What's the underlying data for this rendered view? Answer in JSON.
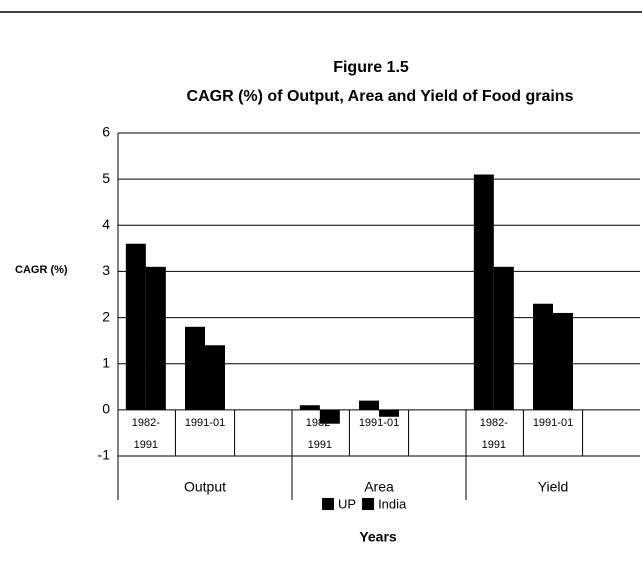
{
  "chart_data": {
    "type": "bar",
    "title": "Figure 1.5",
    "subtitle": "CAGR (%) of Output, Area and Yield of Food grains",
    "y_label": "CAGR (%)",
    "x_label": "Years",
    "groups": [
      "Output",
      "Area",
      "Yield"
    ],
    "categories": [
      "1982-1991",
      "1991-01",
      "1982-1991",
      "1991-01",
      "1982-1991",
      "1991-01"
    ],
    "series": [
      {
        "name": "UP",
        "color": "#000000",
        "values": [
          3.6,
          1.8,
          0.1,
          0.2,
          5.1,
          2.3
        ]
      },
      {
        "name": "India",
        "color": "#000000",
        "values": [
          3.1,
          1.4,
          -0.3,
          -0.15,
          3.1,
          2.1
        ]
      }
    ],
    "ylim": [
      -1,
      6
    ],
    "yticks": [
      -1,
      0,
      1,
      2,
      3,
      4,
      5,
      6
    ],
    "grid": true,
    "legend": "bottom"
  }
}
